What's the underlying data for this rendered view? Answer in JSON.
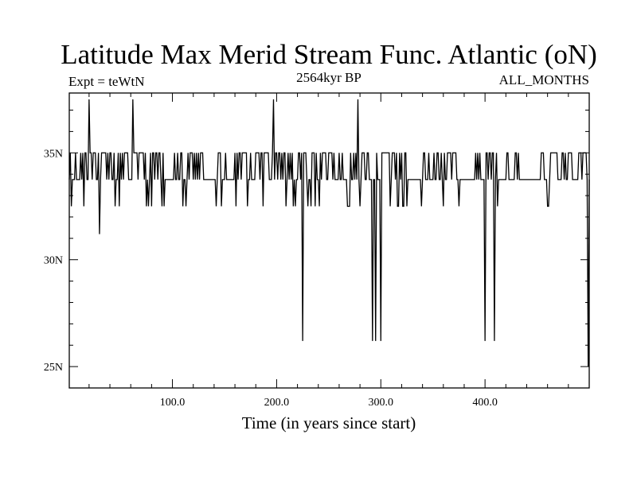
{
  "chart_data": {
    "type": "line",
    "title": "Latitude Max Merid Stream Func. Atlantic (oN)",
    "subtitle_left": "Expt = teWtN",
    "subtitle_center": "2564kyr BP",
    "subtitle_right": "ALL_MONTHS",
    "xlabel": "Time (in years since start)",
    "ylabel": "",
    "xlim": [
      1,
      500
    ],
    "ylim": [
      24,
      37.8
    ],
    "x_ticks": [
      {
        "value": 100,
        "label": "100.0"
      },
      {
        "value": 200,
        "label": "200.0"
      },
      {
        "value": 300,
        "label": "300.0"
      },
      {
        "value": 400,
        "label": "400.0"
      }
    ],
    "y_ticks": [
      {
        "value": 25,
        "label": "25N"
      },
      {
        "value": 30,
        "label": "30N"
      },
      {
        "value": 35,
        "label": "35N"
      }
    ],
    "x_minor_step": 20,
    "y_minor_step": 1,
    "baseline": 33.75,
    "levels": [
      32.5,
      35.0
    ],
    "bursts": [
      [
        1,
        18
      ],
      [
        19,
        36
      ],
      [
        37,
        58
      ],
      [
        63,
        92
      ],
      [
        101,
        125
      ],
      [
        127,
        131
      ],
      [
        140,
        152
      ],
      [
        158,
        175
      ],
      [
        178,
        196
      ],
      [
        199,
        230
      ],
      [
        233,
        264
      ],
      [
        268,
        292
      ],
      [
        296,
        325
      ],
      [
        339,
        346
      ],
      [
        351,
        376
      ],
      [
        385,
        395
      ],
      [
        400,
        412
      ],
      [
        418,
        422
      ],
      [
        428,
        432
      ],
      [
        452,
        456
      ],
      [
        460,
        470
      ],
      [
        474,
        485
      ],
      [
        489,
        497
      ]
    ],
    "spikes": [
      {
        "x": 20,
        "y": 37.5
      },
      {
        "x": 62,
        "y": 37.5
      },
      {
        "x": 197,
        "y": 37.5
      },
      {
        "x": 278,
        "y": 37.5
      },
      {
        "x": 30,
        "y": 31.2
      },
      {
        "x": 225,
        "y": 26.2
      },
      {
        "x": 292,
        "y": 26.2
      },
      {
        "x": 295,
        "y": 26.2
      },
      {
        "x": 300,
        "y": 26.2
      },
      {
        "x": 400,
        "y": 26.2
      },
      {
        "x": 409,
        "y": 26.2
      },
      {
        "x": 499,
        "y": 25.0
      }
    ]
  }
}
